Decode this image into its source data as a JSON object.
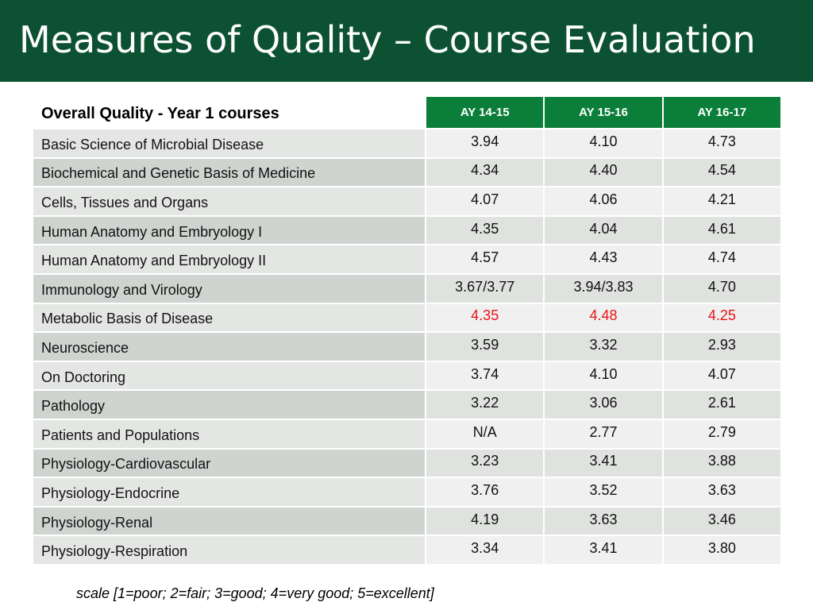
{
  "slide": {
    "title": "Measures of Quality – Course Evaluation",
    "note": "scale [1=poor; 2=fair; 3=good; 4=very good; 5=excellent]"
  },
  "colors": {
    "title_bar": "#0b5132",
    "header_cell": "#0b7f3a",
    "highlight_text": "#e8141b"
  },
  "table": {
    "heading": "Overall Quality - Year 1 courses",
    "columns": [
      "AY 14-15",
      "AY 15-16",
      "AY 16-17"
    ],
    "rows": [
      {
        "course": "Basic Science of Microbial Disease",
        "values": [
          "3.94",
          "4.10",
          "4.73"
        ],
        "highlight": false
      },
      {
        "course": "Biochemical and Genetic Basis of Medicine",
        "values": [
          "4.34",
          "4.40",
          "4.54"
        ],
        "highlight": false
      },
      {
        "course": "Cells, Tissues and Organs",
        "values": [
          "4.07",
          "4.06",
          "4.21"
        ],
        "highlight": false
      },
      {
        "course": "Human Anatomy and Embryology I",
        "values": [
          "4.35",
          "4.04",
          "4.61"
        ],
        "highlight": false
      },
      {
        "course": "Human Anatomy and Embryology II",
        "values": [
          "4.57",
          "4.43",
          "4.74"
        ],
        "highlight": false
      },
      {
        "course": "Immunology and Virology",
        "values": [
          "3.67/3.77",
          "3.94/3.83",
          "4.70"
        ],
        "highlight": false
      },
      {
        "course": "Metabolic Basis of Disease",
        "values": [
          "4.35",
          "4.48",
          "4.25"
        ],
        "highlight": true
      },
      {
        "course": "Neuroscience",
        "values": [
          "3.59",
          "3.32",
          "2.93"
        ],
        "highlight": false
      },
      {
        "course": "On Doctoring",
        "values": [
          "3.74",
          "4.10",
          "4.07"
        ],
        "highlight": false
      },
      {
        "course": "Pathology",
        "values": [
          "3.22",
          "3.06",
          "2.61"
        ],
        "highlight": false
      },
      {
        "course": "Patients and Populations",
        "values": [
          "N/A",
          "2.77",
          "2.79"
        ],
        "highlight": false
      },
      {
        "course": "Physiology-Cardiovascular",
        "values": [
          "3.23",
          "3.41",
          "3.88"
        ],
        "highlight": false
      },
      {
        "course": "Physiology-Endocrine",
        "values": [
          "3.76",
          "3.52",
          "3.63"
        ],
        "highlight": false
      },
      {
        "course": "Physiology-Renal",
        "values": [
          "4.19",
          "3.63",
          "3.46"
        ],
        "highlight": false
      },
      {
        "course": "Physiology-Respiration",
        "values": [
          "3.34",
          "3.41",
          "3.80"
        ],
        "highlight": false
      }
    ]
  }
}
